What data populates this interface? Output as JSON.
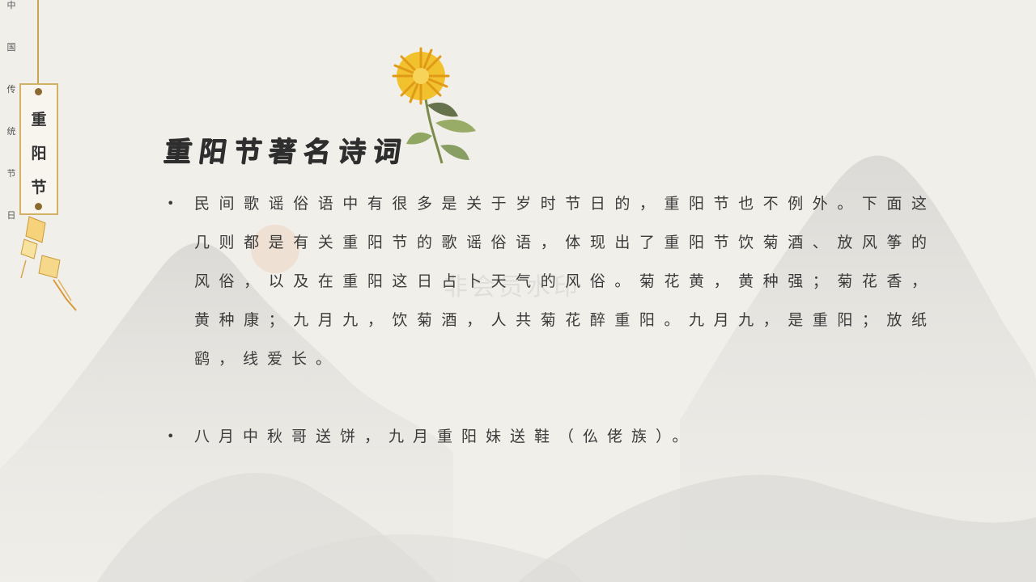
{
  "side_vertical_text": [
    "中",
    "国",
    "传",
    "统",
    "节",
    "日"
  ],
  "tag": {
    "chars": [
      "重",
      "阳",
      "节"
    ]
  },
  "title": "重阳节著名诗词",
  "bullets": [
    "民间歌谣俗语中有很多是关于岁时节日的，重阳节也不例外。下面这几则都是有关重阳节的歌谣俗语，体现出了重阳节饮菊酒、放风筝的风俗，以及在重阳这日占卜天气的风俗。菊花黄，黄种强；菊花香，黄种康；九月九，饮菊酒，人共菊花醉重阳。九月九，是重阳；放纸鹞，线爱长。",
    "八月中秋哥送饼，九月重阳妹送鞋（仫佬族）。"
  ],
  "bullet_marker": "•",
  "colors": {
    "background": "#f1efea",
    "gold": "#c9a553",
    "text": "#3b3b3b",
    "flower": "#f2c12e"
  }
}
